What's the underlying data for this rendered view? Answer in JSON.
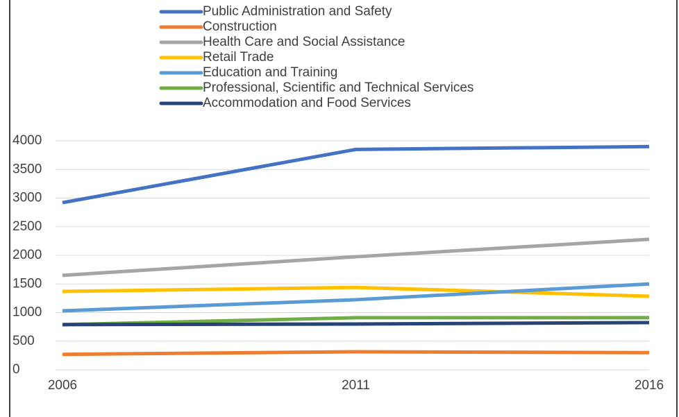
{
  "chart_data": {
    "type": "line",
    "categories": [
      "2006",
      "2011",
      "2016"
    ],
    "series": [
      {
        "name": "Public Administration and Safety",
        "color": "#4472c4",
        "values": [
          2920,
          3850,
          3900
        ]
      },
      {
        "name": "Construction",
        "color": "#ed7d31",
        "values": [
          270,
          315,
          300
        ]
      },
      {
        "name": "Health Care and Social Assistance",
        "color": "#a5a5a5",
        "values": [
          1650,
          1975,
          2280
        ]
      },
      {
        "name": "Retail Trade",
        "color": "#ffc000",
        "values": [
          1370,
          1440,
          1285
        ]
      },
      {
        "name": "Education and Training",
        "color": "#5b9bd5",
        "values": [
          1030,
          1225,
          1500
        ]
      },
      {
        "name": "Professional, Scientific and Technical Services",
        "color": "#70ad47",
        "values": [
          790,
          910,
          910
        ]
      },
      {
        "name": "Accommodation and Food Services",
        "color": "#264478",
        "values": [
          790,
          800,
          825
        ]
      }
    ],
    "ylim": [
      0,
      4000
    ],
    "yticks": [
      0,
      500,
      1000,
      1500,
      2000,
      2500,
      3000,
      3500,
      4000
    ],
    "grid": true,
    "legend": "top"
  }
}
